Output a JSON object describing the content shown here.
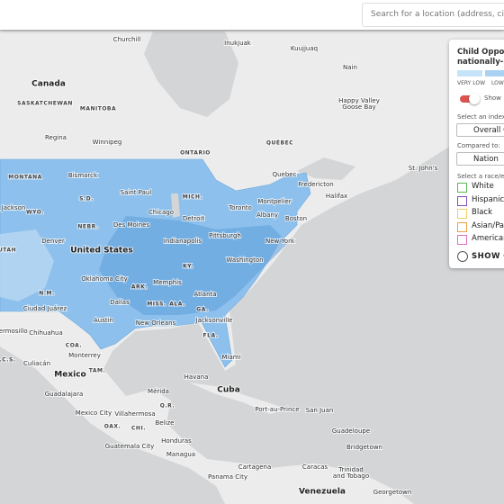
{
  "search": {
    "placeholder": "Search for a location (address, city, or s"
  },
  "map": {
    "labels": [
      "Churchill",
      "Inukjuak",
      "Kuujjuaq",
      "Nain",
      "Canada",
      "SASKATCHEWAN",
      "MANITOBA",
      "Happy Valley",
      "Goose Bay",
      "Regina",
      "Winnipeg",
      "ONTARIO",
      "QUÉBEC",
      "Quebec",
      "Fredericton",
      "St. John's",
      "Halifax",
      "MONTANA",
      "Bismarck",
      "S.D.",
      "Saint Paul",
      "MICH.",
      "Toronto",
      "Montpelier",
      "Albany",
      "Boston",
      "Jackson",
      "WYO.",
      "NEBR.",
      "Des Moines",
      "Chicago",
      "Detroit",
      "Denver",
      "United States",
      "Indianapolis",
      "Pittsburgh",
      "New York",
      "UTAH",
      "Washington",
      "Oklahoma City",
      "KY.",
      "ARK.",
      "Memphis",
      "N.M.",
      "Dallas",
      "Atlanta",
      "MISS.",
      "ALA.",
      "GA.",
      "Ciudad Juárez",
      "Austin",
      "New Orleans",
      "Jacksonville",
      "Hermosillo",
      "Chihuahua",
      "FLA.",
      "COA.",
      "Monterrey",
      "Miami",
      "B.C.S.",
      "Culiacán",
      "TAM.",
      "Mexico",
      "Havana",
      "Cuba",
      "Mérida",
      "Guadalajara",
      "Q.R.",
      "Mexico City",
      "Villahermosa",
      "Port-au-Prince",
      "San Juan",
      "Belize",
      "OAX.",
      "CHI.",
      "Guadeloupe",
      "Honduras",
      "Guatemala City",
      "Bridgetown",
      "Managua",
      "Cartagena",
      "Caracas",
      "Trinidad",
      "and Tobago",
      "Panama City",
      "Venezuela",
      "Georgetown"
    ]
  },
  "panel": {
    "title_lines": [
      "Child Opportu",
      "nationally-no"
    ],
    "legend": [
      "VERY LOW",
      "LOW"
    ],
    "toggle_label": "Show",
    "index_label": "Select an index:",
    "index_value": "Overall C",
    "compare_label": "Compared to:",
    "compare_value": "Nation",
    "race_label": "Select a race/et",
    "races": [
      "White",
      "Hispanic",
      "Black",
      "Asian/Pa",
      "American"
    ],
    "show_button": "SHOW C"
  }
}
